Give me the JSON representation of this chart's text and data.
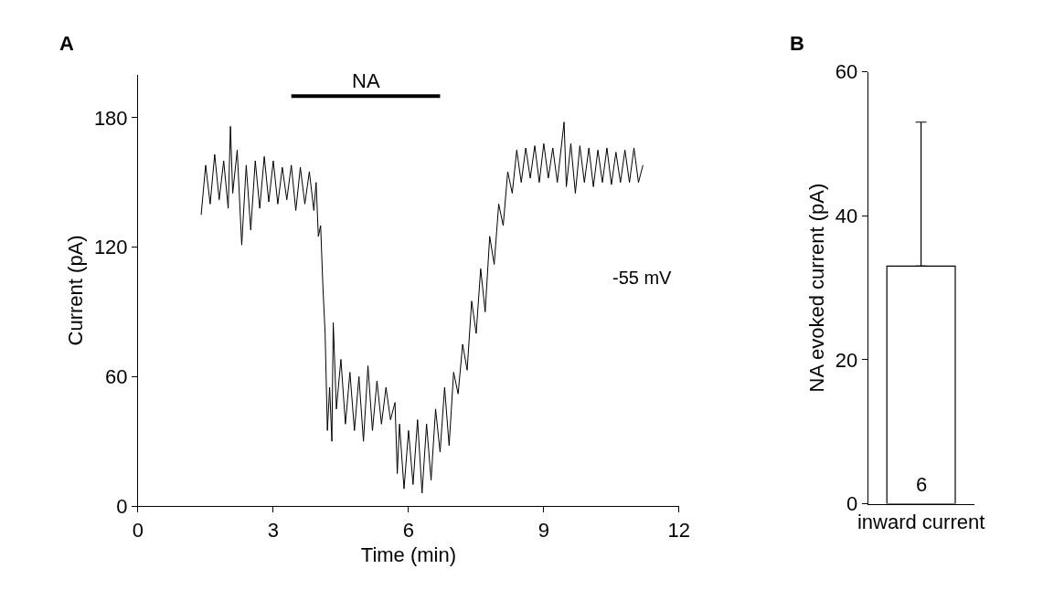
{
  "chart_data": [
    {
      "type": "line",
      "title": "A",
      "xlabel": "Time (min)",
      "ylabel": "Current (pA)",
      "xlim": [
        0,
        12
      ],
      "ylim": [
        0,
        200
      ],
      "xticks": [
        0,
        3,
        6,
        9,
        12
      ],
      "yticks": [
        0,
        60,
        120,
        180
      ],
      "marker": "none",
      "line_style": "solid",
      "annotations": [
        "-55 mV"
      ],
      "series": [
        {
          "color": "#000000",
          "x": [
            1.4,
            1.5,
            1.6,
            1.7,
            1.8,
            1.9,
            2.0,
            2.05,
            2.1,
            2.2,
            2.3,
            2.4,
            2.5,
            2.6,
            2.7,
            2.8,
            2.9,
            3.0,
            3.1,
            3.2,
            3.3,
            3.4,
            3.5,
            3.6,
            3.7,
            3.8,
            3.9,
            3.95,
            4.0,
            4.05,
            4.1,
            4.15,
            4.2,
            4.25,
            4.3,
            4.33,
            4.4,
            4.5,
            4.6,
            4.7,
            4.8,
            4.9,
            5.0,
            5.1,
            5.2,
            5.3,
            5.4,
            5.5,
            5.6,
            5.7,
            5.75,
            5.8,
            5.9,
            6.0,
            6.1,
            6.2,
            6.3,
            6.4,
            6.5,
            6.6,
            6.7,
            6.8,
            6.9,
            7.0,
            7.1,
            7.2,
            7.3,
            7.4,
            7.5,
            7.6,
            7.7,
            7.8,
            7.9,
            8.0,
            8.1,
            8.2,
            8.3,
            8.4,
            8.5,
            8.6,
            8.7,
            8.8,
            8.9,
            9.0,
            9.1,
            9.2,
            9.3,
            9.45,
            9.5,
            9.6,
            9.7,
            9.8,
            9.9,
            10.0,
            10.1,
            10.2,
            10.3,
            10.4,
            10.5,
            10.6,
            10.7,
            10.8,
            10.9,
            11.0,
            11.1,
            11.2
          ],
          "values": [
            135,
            158,
            140,
            163,
            142,
            160,
            138,
            176,
            145,
            165,
            121,
            158,
            128,
            160,
            138,
            162,
            141,
            160,
            140,
            157,
            142,
            158,
            137,
            157,
            140,
            155,
            137,
            150,
            125,
            130,
            102,
            80,
            35,
            55,
            30,
            85,
            45,
            68,
            38,
            62,
            35,
            60,
            30,
            65,
            35,
            58,
            38,
            55,
            40,
            48,
            15,
            38,
            8,
            35,
            10,
            40,
            6,
            38,
            12,
            45,
            25,
            55,
            28,
            62,
            52,
            75,
            63,
            95,
            80,
            110,
            90,
            125,
            112,
            140,
            130,
            155,
            145,
            165,
            150,
            166,
            152,
            167,
            150,
            168,
            152,
            166,
            150,
            178,
            148,
            168,
            145,
            167,
            150,
            166,
            148,
            165,
            150,
            166,
            149,
            164,
            150,
            165,
            150,
            166,
            150,
            158
          ]
        },
        {
          "name": "NA",
          "color": "#000000",
          "x": [
            3.4,
            6.7
          ],
          "values": [
            190,
            190
          ]
        }
      ]
    },
    {
      "type": "bar",
      "title": "B",
      "ylabel": "NA evoked current (pA)",
      "categories": [
        "inward current"
      ],
      "ylim": [
        0,
        60
      ],
      "yticks": [
        0,
        20,
        40,
        60
      ],
      "annotations": [
        "6"
      ],
      "series": [
        {
          "color": "#ffffff",
          "values": [
            33
          ],
          "errors": [
            [
              33,
              53
            ]
          ]
        }
      ]
    }
  ]
}
